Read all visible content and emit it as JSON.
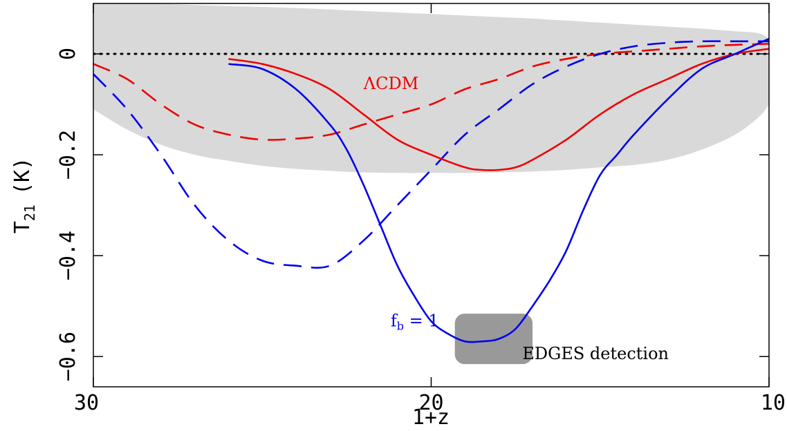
{
  "chart_data": {
    "type": "line",
    "xlabel": "1+z",
    "ylabel": "T",
    "ylabel_sub": "21",
    "ylabel_unit": "(K)",
    "xlim": [
      30,
      10
    ],
    "ylim": [
      -0.66,
      0.1
    ],
    "x_ticks": [
      30,
      20,
      10
    ],
    "x_tick_labels": [
      "30",
      "20",
      "10"
    ],
    "y_ticks": [
      0,
      -0.2,
      -0.4,
      -0.6
    ],
    "y_tick_labels": [
      "0",
      "−0.2",
      "−0.4",
      "−0.6"
    ],
    "zero_line": true,
    "band": {
      "color": "#d9d9d9",
      "x": [
        30,
        29,
        28,
        27,
        26,
        25,
        24,
        23,
        22,
        21,
        20,
        19,
        18,
        17,
        16,
        15,
        14,
        13,
        12,
        11,
        10.3,
        10
      ],
      "upper": [
        0.1,
        0.1,
        0.099,
        0.097,
        0.095,
        0.093,
        0.091,
        0.088,
        0.085,
        0.082,
        0.079,
        0.076,
        0.073,
        0.07,
        0.066,
        0.062,
        0.058,
        0.054,
        0.05,
        0.045,
        0.041,
        0.03
      ],
      "lower": [
        -0.11,
        -0.15,
        -0.18,
        -0.2,
        -0.212,
        -0.222,
        -0.228,
        -0.232,
        -0.235,
        -0.236,
        -0.236,
        -0.236,
        -0.235,
        -0.233,
        -0.23,
        -0.225,
        -0.22,
        -0.21,
        -0.19,
        -0.16,
        -0.125,
        -0.1
      ]
    },
    "series": [
      {
        "name": "ΛCDM",
        "color": "#ee0000",
        "dashed": false,
        "x": [
          26,
          25,
          24,
          23,
          22,
          21,
          20,
          19,
          18.5,
          18,
          17.5,
          17,
          16,
          15,
          14,
          13,
          12,
          11,
          10
        ],
        "y": [
          -0.01,
          -0.02,
          -0.04,
          -0.07,
          -0.12,
          -0.17,
          -0.2,
          -0.225,
          -0.23,
          -0.23,
          -0.225,
          -0.21,
          -0.17,
          -0.12,
          -0.08,
          -0.05,
          -0.02,
          0.0,
          0.01
        ]
      },
      {
        "name": "f_b = 1",
        "color": "#0000ee",
        "dashed": false,
        "x": [
          26,
          25,
          24,
          23,
          22.5,
          22,
          21.5,
          21,
          20.5,
          20,
          19.5,
          19,
          18.5,
          18,
          17.5,
          17,
          16.5,
          16,
          15.5,
          15,
          14.5,
          14,
          13,
          12,
          11,
          10
        ],
        "y": [
          -0.02,
          -0.03,
          -0.07,
          -0.14,
          -0.19,
          -0.26,
          -0.34,
          -0.42,
          -0.48,
          -0.53,
          -0.555,
          -0.57,
          -0.57,
          -0.565,
          -0.545,
          -0.5,
          -0.45,
          -0.39,
          -0.31,
          -0.24,
          -0.2,
          -0.16,
          -0.09,
          -0.03,
          0.0,
          0.03
        ]
      },
      {
        "color": "#ee0000",
        "dashed": true,
        "x": [
          30,
          29,
          28,
          27,
          26,
          25,
          24,
          23,
          22,
          21,
          20,
          19,
          18,
          17,
          16,
          15,
          14,
          13,
          12,
          11,
          10
        ],
        "y": [
          -0.02,
          -0.05,
          -0.1,
          -0.14,
          -0.16,
          -0.17,
          -0.168,
          -0.16,
          -0.14,
          -0.12,
          -0.1,
          -0.07,
          -0.05,
          -0.025,
          -0.01,
          0.0,
          0.005,
          0.01,
          0.015,
          0.018,
          0.02
        ]
      },
      {
        "color": "#0000ee",
        "dashed": true,
        "x": [
          30,
          29,
          28,
          27,
          26,
          25,
          24,
          23,
          22,
          21,
          20,
          19,
          18,
          17,
          16,
          15,
          14,
          13,
          12,
          11,
          10
        ],
        "y": [
          -0.04,
          -0.11,
          -0.2,
          -0.3,
          -0.37,
          -0.41,
          -0.42,
          -0.42,
          -0.37,
          -0.3,
          -0.23,
          -0.16,
          -0.11,
          -0.06,
          -0.025,
          0.0,
          0.015,
          0.022,
          0.025,
          0.025,
          0.025
        ]
      }
    ],
    "annotations": [
      {
        "text": "ΛCDM",
        "color": "#ee0000",
        "x": 22,
        "y": -0.07
      },
      {
        "text": "f",
        "sub": "b",
        "suffix": " = 1",
        "color": "#0000ee",
        "x": 21.2,
        "y": -0.54
      },
      {
        "text": "EDGES detection",
        "color": "#000000",
        "x": 17.3,
        "y": -0.605
      }
    ],
    "edges_box": {
      "label": "EDGES detection",
      "color": "#999999",
      "x_range": [
        19.3,
        17.0
      ],
      "y_range": [
        -0.515,
        -0.615
      ]
    }
  }
}
